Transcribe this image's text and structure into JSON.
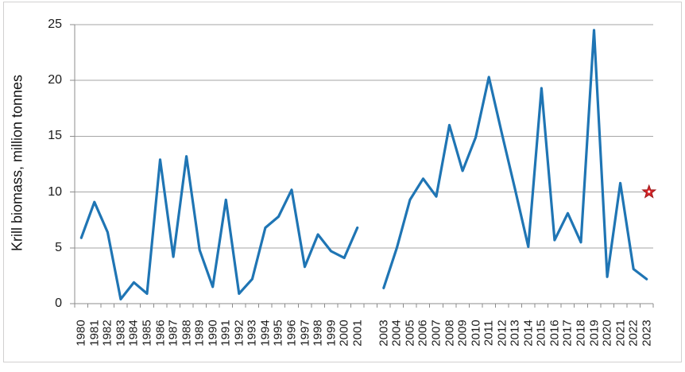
{
  "chart_data": {
    "type": "line",
    "title": "",
    "xlabel": "",
    "ylabel": "Krill biomass, million tonnes",
    "ylim": [
      0,
      25
    ],
    "yticks": [
      0,
      5,
      10,
      15,
      20,
      25
    ],
    "grid": "horizontal",
    "legend_position": "none",
    "x_axis_note": "categories run 1980-2001, then an unlabeled gap for 2002, then 2003-2023; year labels rotated vertically",
    "series": [
      {
        "name": "krill-biomass-1980-2001",
        "x": [
          "1980",
          "1981",
          "1982",
          "1983",
          "1984",
          "1985",
          "1986",
          "1987",
          "1988",
          "1989",
          "1990",
          "1991",
          "1992",
          "1993",
          "1994",
          "1995",
          "1996",
          "1997",
          "1998",
          "1999",
          "2000",
          "2001"
        ],
        "values": [
          5.9,
          9.1,
          6.4,
          0.4,
          1.9,
          0.9,
          12.9,
          4.2,
          13.2,
          4.8,
          1.5,
          9.3,
          0.9,
          2.2,
          6.8,
          7.8,
          10.2,
          3.3,
          6.2,
          4.7,
          4.1,
          6.8
        ]
      },
      {
        "name": "krill-biomass-2003-2023",
        "x": [
          "2003",
          "2004",
          "2005",
          "2006",
          "2007",
          "2008",
          "2009",
          "2010",
          "2011",
          "2012",
          "2013",
          "2014",
          "2015",
          "2016",
          "2017",
          "2018",
          "2019",
          "2020",
          "2021",
          "2022",
          "2023"
        ],
        "values": [
          1.4,
          5.0,
          9.3,
          11.2,
          9.6,
          16.0,
          11.9,
          14.9,
          20.3,
          15.2,
          10.2,
          5.1,
          19.3,
          5.7,
          8.1,
          5.5,
          24.5,
          2.4,
          10.8,
          3.1,
          2.2
        ]
      }
    ],
    "point_marker": {
      "name": "red-star-marker",
      "x": "2023",
      "value": 10.0,
      "shape": "star-5-point"
    },
    "colors": {
      "line": "#1f75b4",
      "gridline": "#a6a6a6",
      "axis": "#8c8c8c",
      "tick": "#8c8c8c",
      "text": "#1a1a1a",
      "star_fill": "#d8272b",
      "star_stroke": "#9e1517",
      "star_center_dot": "#ffffff",
      "background": "#ffffff",
      "frame_border": "#d2d0d0"
    }
  }
}
